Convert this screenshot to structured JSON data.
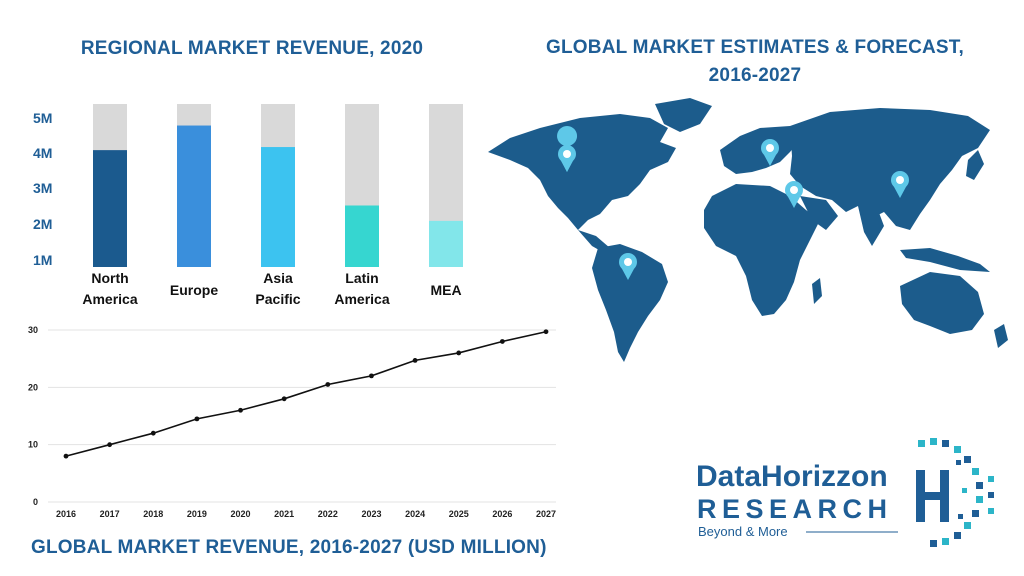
{
  "titles": {
    "regional": "REGIONAL MARKET REVENUE, 2020",
    "global_line1": "GLOBAL MARKET  ESTIMATES & FORECAST,",
    "global_line2": "2016-2027",
    "revenue": "GLOBAL MARKET REVENUE, 2016-2027 (USD MILLION)"
  },
  "logo": {
    "name": "DataHorizzon",
    "sub": "RESEARCH",
    "tagline": "Beyond & More"
  },
  "colors": {
    "brand": "#1f5e96",
    "map": "#1c5c8c",
    "pin": "#5ec8e8"
  },
  "chart_data": [
    {
      "type": "bar",
      "title": "REGIONAL MARKET REVENUE, 2020",
      "categories": [
        [
          "North",
          "America"
        ],
        [
          "Europe"
        ],
        [
          "Asia",
          "Pacific"
        ],
        [
          "Latin",
          "America"
        ],
        [
          "MEA"
        ]
      ],
      "values": [
        3.8,
        4.6,
        3.9,
        2.0,
        1.5
      ],
      "colors": [
        "#1b5a8e",
        "#3a8fdc",
        "#3cc3f0",
        "#36d6d0",
        "#82e6ea"
      ],
      "yticks": [
        "5M",
        "4M",
        "3M",
        "2M",
        "1M"
      ],
      "ylim": [
        0,
        5.3
      ],
      "grid": false
    },
    {
      "type": "line",
      "title": "GLOBAL MARKET REVENUE, 2016-2027 (USD MILLION)",
      "x": [
        "2016",
        "2017",
        "2018",
        "2019",
        "2020",
        "2021",
        "2022",
        "2023",
        "2024",
        "2025",
        "2026",
        "2027"
      ],
      "values": [
        8,
        10,
        12,
        14.5,
        16,
        18,
        20.5,
        22,
        24.7,
        26,
        28,
        29.7
      ],
      "yticks": [
        0,
        10,
        20,
        30
      ],
      "ylim": [
        0,
        30
      ],
      "grid": true
    }
  ]
}
